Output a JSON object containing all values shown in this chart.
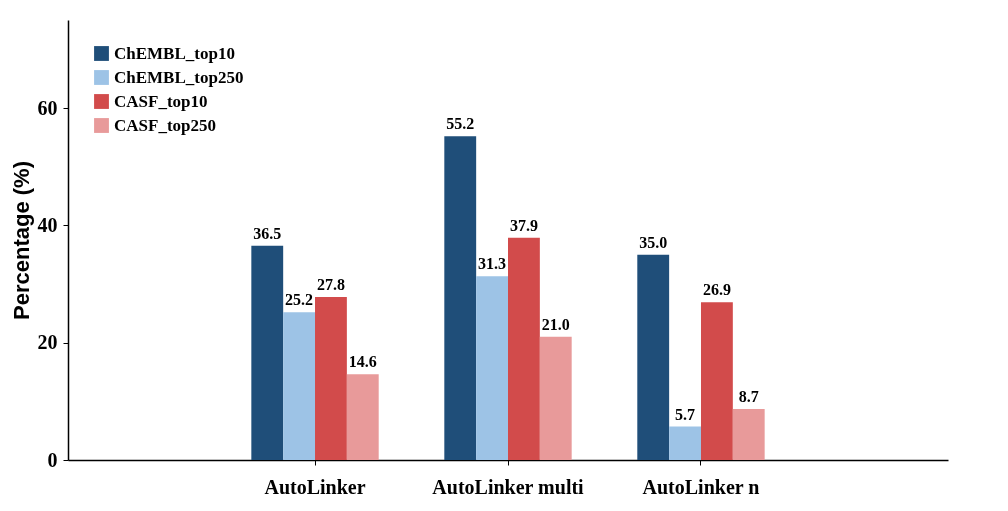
{
  "chart_data": {
    "type": "bar",
    "ylabel": "Percentage (%)",
    "categories": [
      "AutoLinker",
      "AutoLinker  multi",
      "AutoLinker  n"
    ],
    "series": [
      {
        "name": "ChEMBL_top10",
        "color": "#1f4e79",
        "values": [
          36.5,
          55.2,
          35.0
        ]
      },
      {
        "name": "ChEMBL_top250",
        "color": "#9dc3e6",
        "values": [
          25.2,
          31.3,
          5.7
        ]
      },
      {
        "name": "CASF_top10",
        "color": "#d24b4b",
        "values": [
          27.8,
          37.9,
          26.9
        ]
      },
      {
        "name": "CASF_top250",
        "color": "#e89a9a",
        "values": [
          14.6,
          21.0,
          8.7
        ]
      }
    ],
    "value_labels": [
      [
        "36.5",
        "55.2",
        "35.0"
      ],
      [
        "25.2",
        "31.3",
        "5.7"
      ],
      [
        "27.8",
        "37.9",
        "26.9"
      ],
      [
        "14.6",
        "21.0",
        "8.7"
      ]
    ],
    "ylim": [
      0,
      75
    ],
    "yticks": [
      0,
      20,
      40,
      60
    ],
    "grid": false,
    "legend": "top left"
  }
}
